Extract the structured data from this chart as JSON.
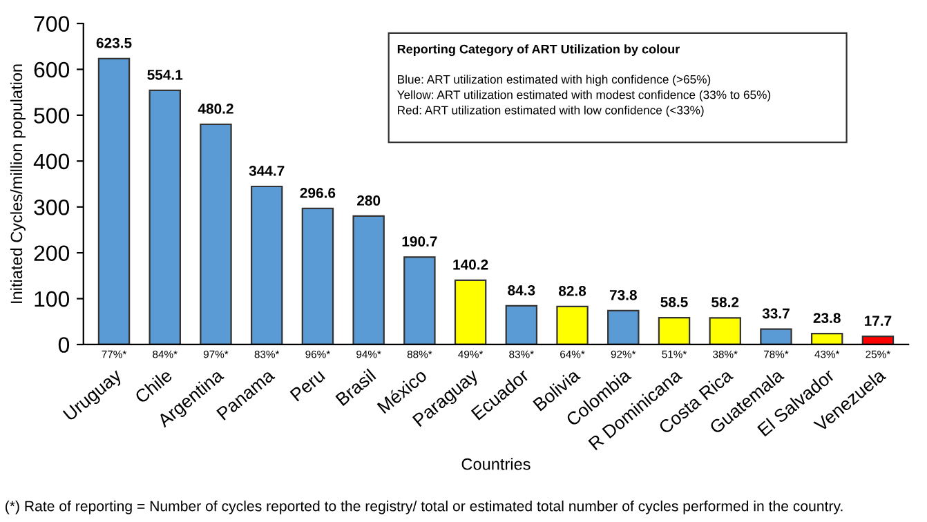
{
  "chart_data": {
    "type": "bar",
    "xlabel": "Countries",
    "ylabel": "Initiated Cycles/million population",
    "categories": [
      "Uruguay",
      "Chile",
      "Argentina",
      "Panama",
      "Peru",
      "Brasil",
      "México",
      "Paraguay",
      "Ecuador",
      "Bolivia",
      "Colombia",
      "R Dominicana",
      "Costa Rica",
      "Guatemala",
      "El Salvador",
      "Venezuela"
    ],
    "values": [
      623.5,
      554.1,
      480.2,
      344.7,
      296.6,
      280,
      190.7,
      140.2,
      84.3,
      82.8,
      73.8,
      58.5,
      58.2,
      33.7,
      23.8,
      17.7
    ],
    "colors": [
      "#5b9bd5",
      "#5b9bd5",
      "#5b9bd5",
      "#5b9bd5",
      "#5b9bd5",
      "#5b9bd5",
      "#5b9bd5",
      "#ffff00",
      "#5b9bd5",
      "#ffff00",
      "#5b9bd5",
      "#ffff00",
      "#ffff00",
      "#5b9bd5",
      "#ffff00",
      "#ff0000"
    ],
    "ylim": [
      0,
      700
    ],
    "yticks": [
      0,
      100,
      200,
      300,
      400,
      500,
      600,
      700
    ],
    "grid": false,
    "data_labels": true,
    "annotations": [
      {
        "text": "77%*",
        "x": "Uruguay",
        "y": 0
      },
      {
        "text": "84%*",
        "x": "Chile",
        "y": 0
      },
      {
        "text": "97%*",
        "x": "Argentina",
        "y": 0
      },
      {
        "text": "83%*",
        "x": "Panama",
        "y": 0
      },
      {
        "text": "96%*",
        "x": "Peru",
        "y": 0
      },
      {
        "text": "94%*",
        "x": "Brasil",
        "y": 0
      },
      {
        "text": "88%*",
        "x": "México",
        "y": 0
      },
      {
        "text": "49%*",
        "x": "Paraguay",
        "y": 0
      },
      {
        "text": "83%*",
        "x": "Ecuador",
        "y": 0
      },
      {
        "text": "64%*",
        "x": "Bolivia",
        "y": 0
      },
      {
        "text": "92%*",
        "x": "Colombia",
        "y": 0
      },
      {
        "text": "51%*",
        "x": "R Dominicana",
        "y": 0
      },
      {
        "text": "38%*",
        "x": "Costa Rica",
        "y": 0
      },
      {
        "text": "78%*",
        "x": "Guatemala",
        "y": 0
      },
      {
        "text": "43%*",
        "x": "El Salvador",
        "y": 0
      },
      {
        "text": "25%*",
        "x": "Venezuela",
        "y": 0
      },
      "Reporting Category of ART Utilization by colour",
      "Blue: ART utilization estimated with high confidence (>65%)\nYellow: ART utilization estimated with modest confidence (33% to 65%)\nRed: ART utilization estimated with low confidence (<33%)",
      "(*) Rate of reporting = Number of cycles reported to the registry/ total or estimated total number of cycles performed in the country."
    ]
  }
}
